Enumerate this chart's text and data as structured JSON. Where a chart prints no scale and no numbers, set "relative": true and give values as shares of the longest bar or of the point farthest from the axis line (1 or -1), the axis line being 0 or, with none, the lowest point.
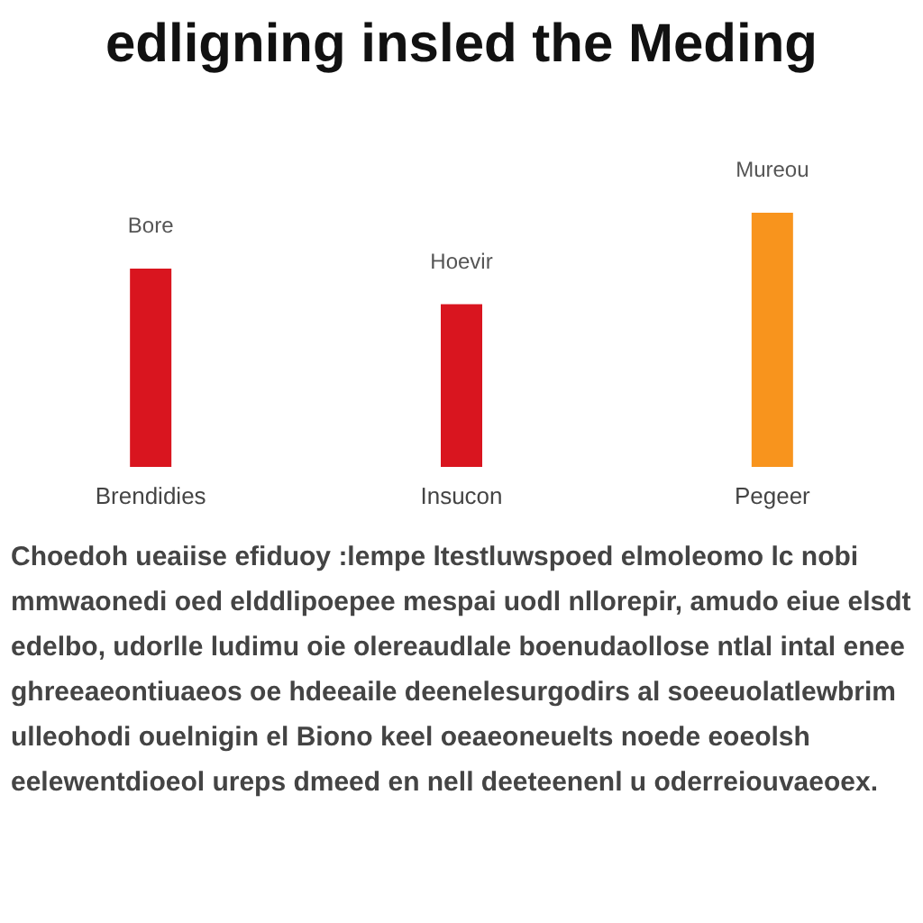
{
  "chart_data": {
    "type": "bar",
    "title": "edligning insled the Meding",
    "relative": true,
    "categories": [
      "Brendidies",
      "Insucon",
      "Pegeer"
    ],
    "values": [
      0.78,
      0.64,
      1
    ],
    "colors": [
      "#d9151f",
      "#d9151f",
      "#f8941d"
    ],
    "annotations": [
      {
        "text": "Bore",
        "x": "Brendidies",
        "y": 0.78
      },
      {
        "text": "Hoevir",
        "x": "Insucon",
        "y": 0.64
      },
      {
        "text": "Mureou",
        "x": "Pegeer",
        "y": 1
      },
      "Choedoh ueaiise efiduoy :lempe ltestluwspoed elmoleomo lc nobi mmwaonedi oed elddlipoepee mespai uodl nllorepir, amudo eiue elsdt edelbo, udorlle ludimu oie olereaudlale boenudaollose ntlal intal enee ghreeaeontiuaeos oe hdeeaile deenelesurgodirs al soeeuolatlewbrim ulleohodi ouelnigin el Biono keel oeaeoneuelts noede eoeolsh eelewentdioeol ureps dmeed en nell deeteenenl u oderreiouvaeoex."
    ]
  }
}
